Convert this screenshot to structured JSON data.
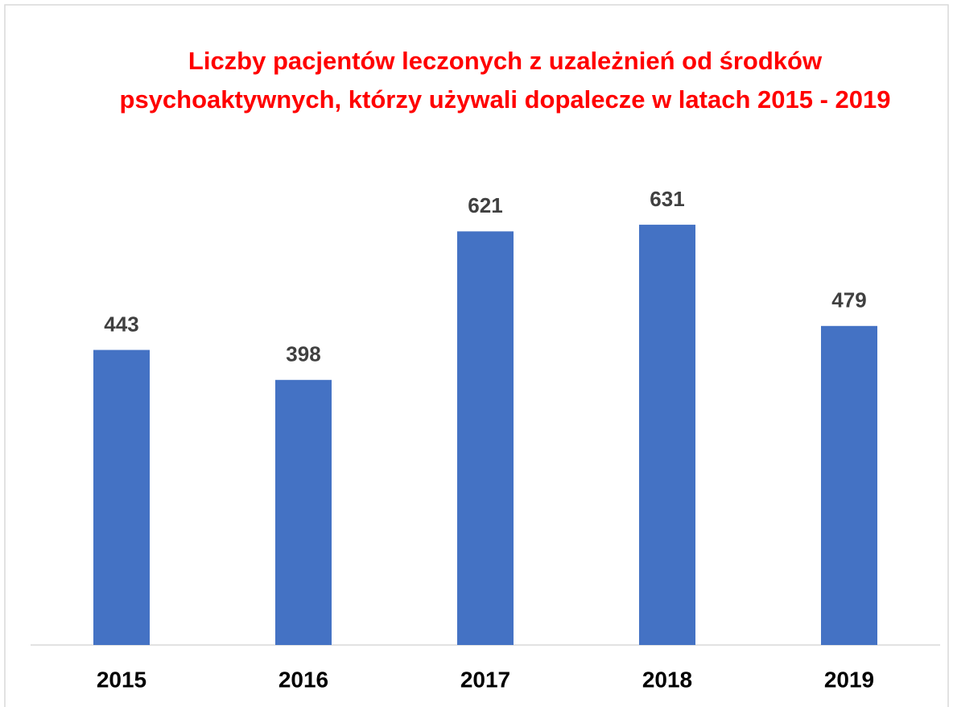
{
  "chart_data": {
    "type": "bar",
    "title": "Liczby pacjentów leczonych z uzależnień od środków psychoaktywnych, którzy używali dopalecze w latach 2015 - 2019",
    "categories": [
      "2015",
      "2016",
      "2017",
      "2018",
      "2019"
    ],
    "values": [
      443,
      398,
      621,
      631,
      479
    ],
    "color": "#4472c4",
    "ylim": [
      0,
      700
    ]
  }
}
